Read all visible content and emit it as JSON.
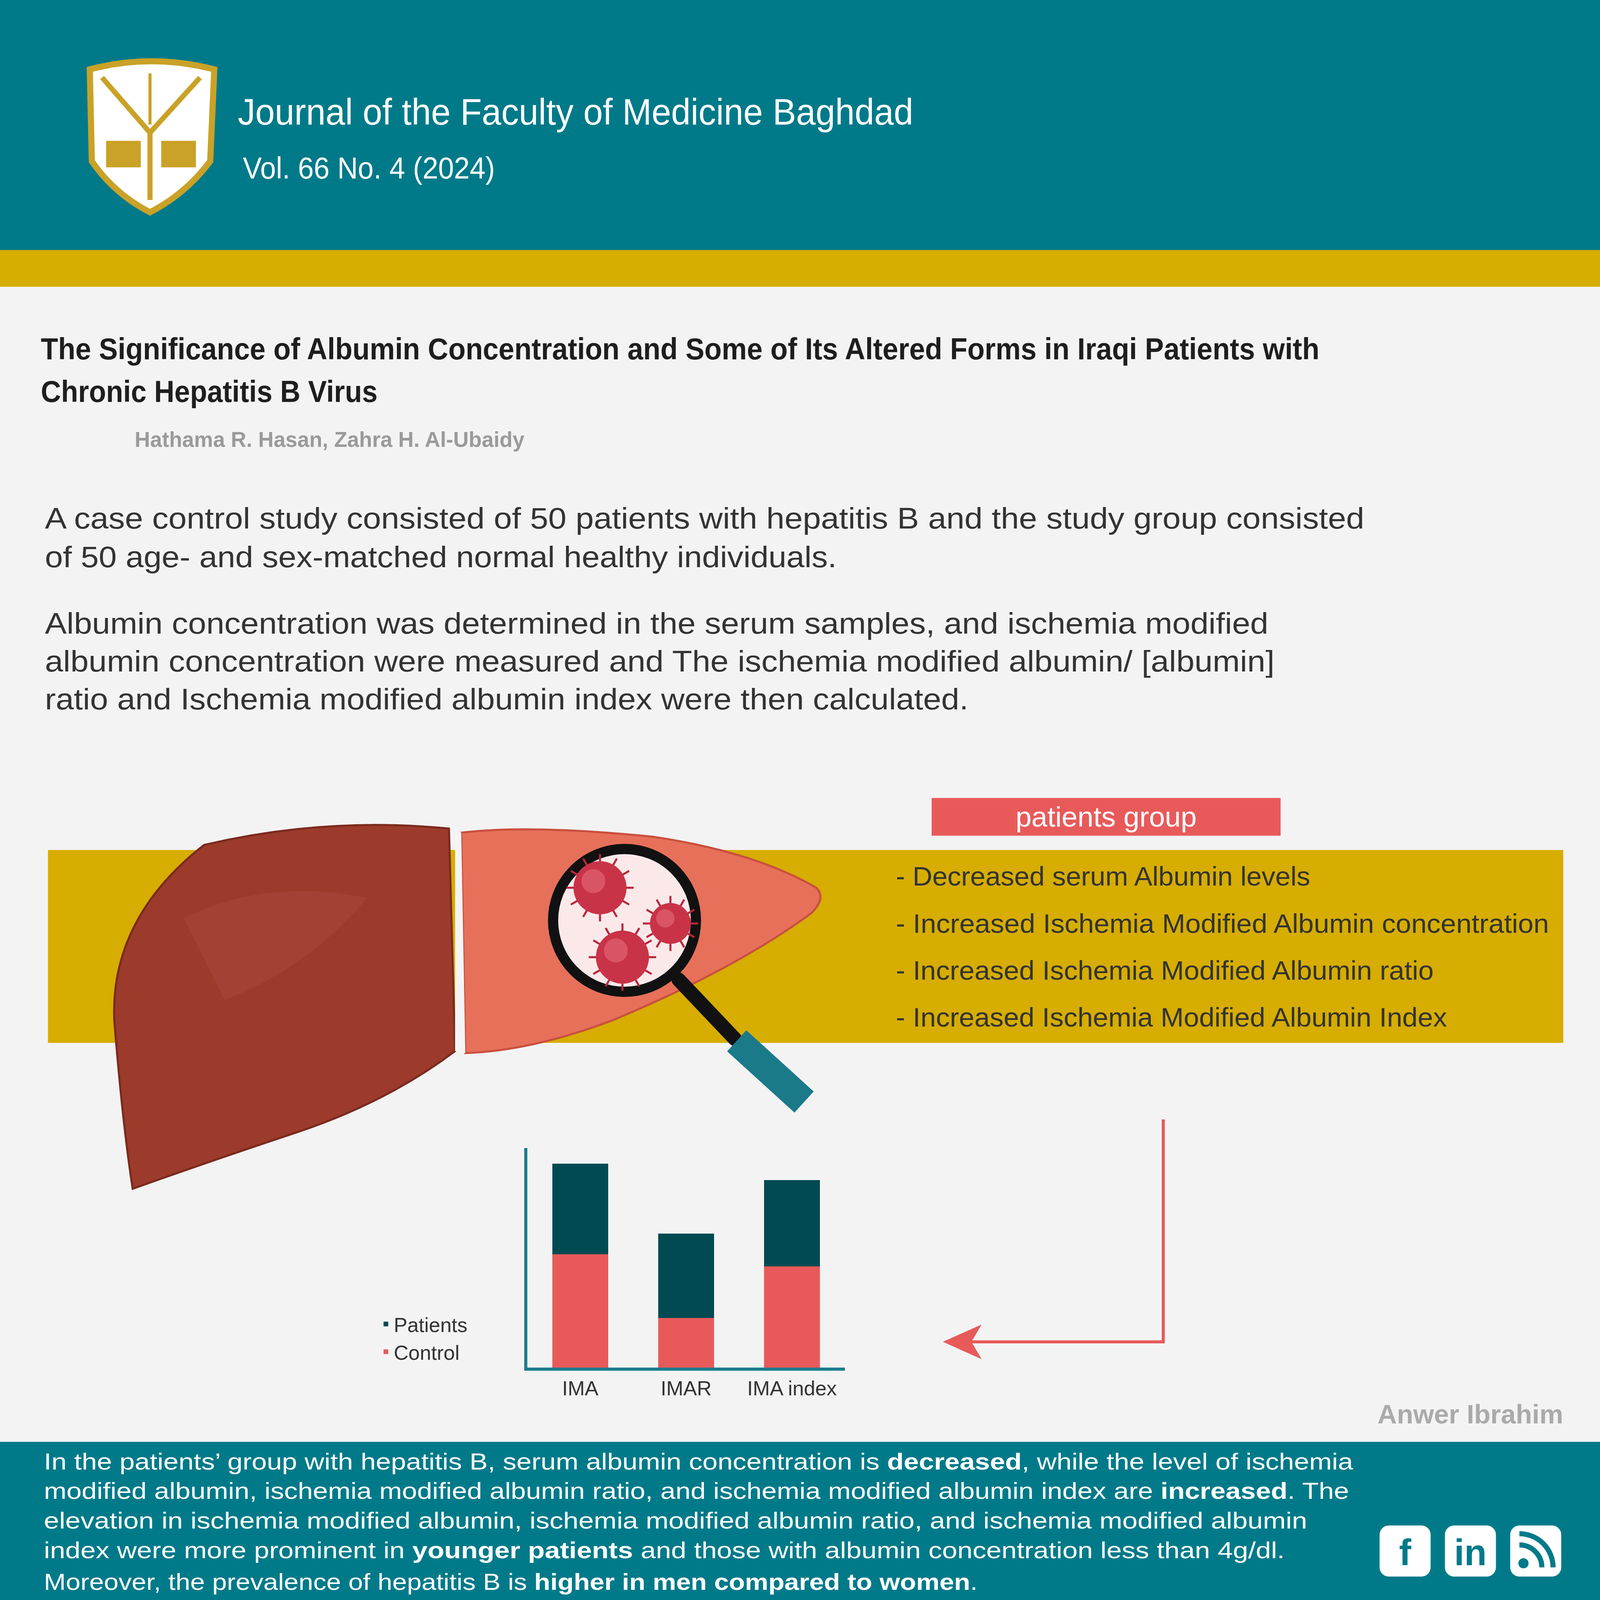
{
  "header": {
    "journal": "Journal of the Faculty of Medicine Baghdad",
    "issue": "Vol. 66 No. 4 (2024)"
  },
  "article": {
    "title_lines": [
      "The Significance of Albumin Concentration and Some of Its Altered Forms in Iraqi Patients with",
      "Chronic Hepatitis B Virus"
    ],
    "authors": "Hathama R. Hasan, Zahra H. Al-Ubaidy"
  },
  "description": [
    [
      "A case control study consisted of 50 patients with hepatitis B and the study group consisted",
      "of 50 age- and sex-matched normal healthy individuals."
    ],
    [
      "Albumin concentration was determined in the serum samples, and ischemia modified",
      "albumin concentration were measured and The ischemia modified albumin/ [albumin]",
      "ratio and Ischemia modified albumin index were then calculated."
    ]
  ],
  "findings": {
    "label": "patients group",
    "items": [
      "- Decreased serum Albumin levels",
      "- Increased Ischemia Modified Albumin concentration",
      "- Increased Ischemia Modified Albumin ratio",
      "- Increased Ischemia Modified Albumin Index"
    ]
  },
  "chart_data": {
    "type": "bar",
    "stacked": true,
    "categories": [
      "IMA",
      "IMAR",
      "IMA index"
    ],
    "series": [
      {
        "name": "Control",
        "color": "#e85a5a",
        "values": [
          110,
          48,
          98
        ]
      },
      {
        "name": "Patients",
        "color": "#024a52",
        "values": [
          88,
          82,
          84
        ]
      }
    ],
    "ylim": [
      0,
      213
    ],
    "yticks": [],
    "tick_labels": "x",
    "grid": false,
    "legend": "left"
  },
  "credit": "Anwer Ibrahim",
  "summary": [
    [
      {
        "text": "In the patients’ group with hepatitis B, serum albumin concentration is "
      },
      {
        "text": "decreased",
        "bold": true
      },
      {
        "text": ", while the level of ischemia"
      }
    ],
    [
      {
        "text": "modified albumin, ischemia modified albumin ratio, and ischemia modified albumin index are "
      },
      {
        "text": "increased",
        "bold": true
      },
      {
        "text": ". The"
      }
    ],
    [
      {
        "text": "elevation in ischemia modified albumin, ischemia modified albumin ratio, and ischemia modified albumin"
      }
    ],
    [
      {
        "text": "index were more prominent in "
      },
      {
        "text": "younger patients",
        "bold": true
      },
      {
        "text": " and those with albumin concentration less than 4g/dl."
      }
    ],
    [
      {
        "text": "Moreover, the prevalence of hepatitis B is "
      },
      {
        "text": "higher in men compared to women",
        "bold": true
      },
      {
        "text": "."
      }
    ]
  ],
  "social_icons": [
    "f",
    "in"
  ]
}
